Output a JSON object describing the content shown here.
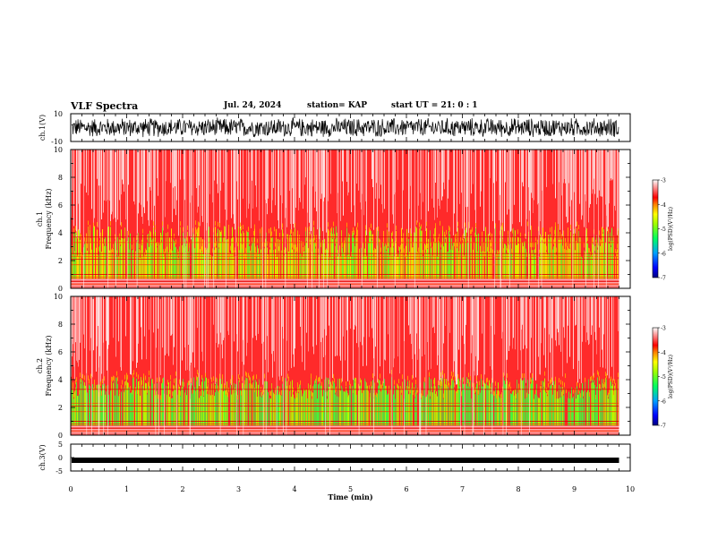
{
  "header": {
    "title": "VLF Spectra",
    "date": "Jul. 24, 2024",
    "station": "station= KAP",
    "start": "start UT =  21: 0  : 1"
  },
  "chart_data": [
    {
      "type": "line",
      "name": "ch1-waveform",
      "ylabel": "ch.1(V)",
      "ylim": [
        -10,
        10
      ],
      "yticks": [
        "10",
        "-10"
      ],
      "xlim": [
        0,
        10
      ],
      "description_values": "noisy waveform oscillating roughly between -8 and 8 V over 0-9.8 min"
    },
    {
      "type": "heatmap",
      "name": "ch1-spectrogram",
      "ylabel": "ch.1\nFrequency (kHz)",
      "ylabel_line1": "ch.1",
      "ylabel_line2": "Frequency (kHz)",
      "ylim": [
        0,
        10
      ],
      "yticks": [
        "0",
        "2",
        "4",
        "6",
        "8",
        "10"
      ],
      "xlim": [
        0,
        10
      ],
      "data_extent_min": 9.8,
      "colorbar": {
        "label": "log(PSD)(V²/Hz)",
        "range": [
          -7,
          -3
        ],
        "ticks": [
          "-3",
          "-4",
          "-5",
          "-6",
          "-7"
        ]
      },
      "bands_khz": [
        0.3,
        0.5,
        0.8,
        1.0,
        1.7,
        2.1,
        2.3,
        2.5,
        3.3,
        3.7
      ]
    },
    {
      "type": "heatmap",
      "name": "ch2-spectrogram",
      "ylabel_line1": "ch.2",
      "ylabel_line2": "Frequency (kHz)",
      "ylim": [
        0,
        10
      ],
      "yticks": [
        "0",
        "2",
        "4",
        "6",
        "8",
        "10"
      ],
      "xlim": [
        0,
        10
      ],
      "data_extent_min": 9.8,
      "colorbar": {
        "label": "log(PSD)(V²/Hz)",
        "range": [
          -7,
          -3
        ],
        "ticks": [
          "-3",
          "-4",
          "-5",
          "-6",
          "-7"
        ]
      },
      "bands_khz": [
        0.3,
        0.5,
        0.8,
        1.0,
        1.7,
        2.1,
        2.3,
        3.3
      ]
    },
    {
      "type": "line",
      "name": "ch3-waveform",
      "ylabel": "ch.3(V)",
      "ylim": [
        -5,
        5
      ],
      "yticks": [
        "5",
        "0",
        "-5"
      ],
      "xlim": [
        0,
        10
      ],
      "level": -1.0,
      "xlabel": "Time (min)",
      "xticks": [
        "0",
        "1",
        "2",
        "3",
        "4",
        "5",
        "6",
        "7",
        "8",
        "9",
        "10"
      ]
    }
  ]
}
